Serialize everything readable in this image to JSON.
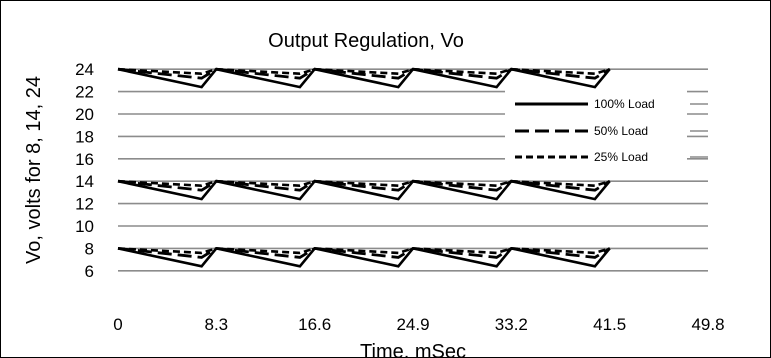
{
  "chart_data": {
    "type": "line",
    "title": "Output Regulation, Vo",
    "xlabel": "Time, mSec",
    "ylabel": "Vo, volts for 8, 14, 24",
    "x_ticks": [
      "0",
      "8.3",
      "16.6",
      "24.9",
      "33.2",
      "41.5",
      "49.8"
    ],
    "y_ticks": [
      "6",
      "8",
      "10",
      "12",
      "14",
      "16",
      "18",
      "20",
      "22",
      "24"
    ],
    "xlim": [
      0,
      49.8
    ],
    "ylim": [
      5,
      25
    ],
    "grid": true,
    "legend_position": "right",
    "period_ms": 8.3,
    "setpoints": [
      24,
      14,
      8
    ],
    "series": [
      {
        "name": "100% Load",
        "style": "solid",
        "ripple_v": 1.6
      },
      {
        "name": "50% Load",
        "style": "long-dash",
        "ripple_v": 0.8
      },
      {
        "name": "25% Load",
        "style": "short-dash",
        "ripple_v": 0.4
      }
    ]
  }
}
